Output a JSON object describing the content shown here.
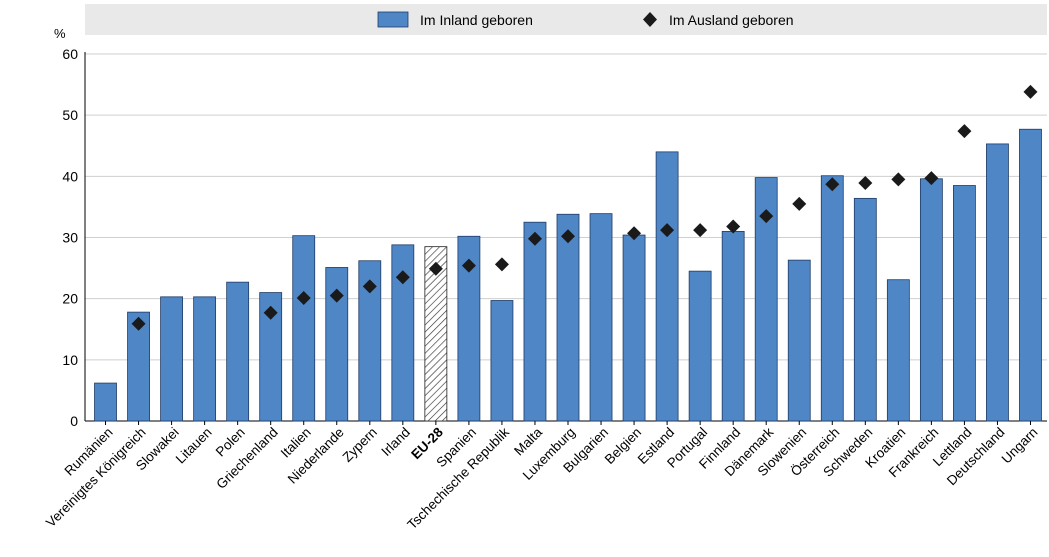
{
  "chart_data": {
    "type": "bar",
    "title": "",
    "xlabel": "",
    "ylabel": "%",
    "ylim": [
      0,
      60
    ],
    "yticks": [
      0,
      10,
      20,
      30,
      40,
      50,
      60
    ],
    "grid": "horizontal",
    "legend_position": "top",
    "highlight_category": "EU-28",
    "categories": [
      "Rumänien",
      "Vereinigtes Königreich",
      "Slowakei",
      "Litauen",
      "Polen",
      "Griechenland",
      "Italien",
      "Niederlande",
      "Zypern",
      "Irland",
      "EU-28",
      "Spanien",
      "Tschechische Republik",
      "Malta",
      "Luxemburg",
      "Bulgarien",
      "Belgien",
      "Estland",
      "Portugal",
      "Finnland",
      "Dänemark",
      "Slowenien",
      "Österreich",
      "Schweden",
      "Kroatien",
      "Frankreich",
      "Lettland",
      "Deutschland",
      "Ungarn"
    ],
    "series": [
      {
        "name": "Im Inland geboren",
        "kind": "bar",
        "color": "#4f86c6",
        "values": [
          6.2,
          17.8,
          20.3,
          20.3,
          22.7,
          21.0,
          30.3,
          25.1,
          26.2,
          28.8,
          28.5,
          30.2,
          19.7,
          32.5,
          33.8,
          33.9,
          30.4,
          44.0,
          24.5,
          31.0,
          39.8,
          26.3,
          40.1,
          36.4,
          23.1,
          39.6,
          38.5,
          45.3,
          47.7
        ]
      },
      {
        "name": "Im Ausland geboren",
        "kind": "marker",
        "color": "#1a1a1a",
        "values": [
          null,
          15.9,
          null,
          null,
          null,
          17.7,
          20.1,
          20.5,
          22.0,
          23.5,
          24.9,
          25.4,
          25.6,
          29.8,
          30.2,
          null,
          30.7,
          31.2,
          31.2,
          31.8,
          33.5,
          35.5,
          38.7,
          38.9,
          39.5,
          39.7,
          47.4,
          null,
          53.8
        ]
      }
    ]
  }
}
